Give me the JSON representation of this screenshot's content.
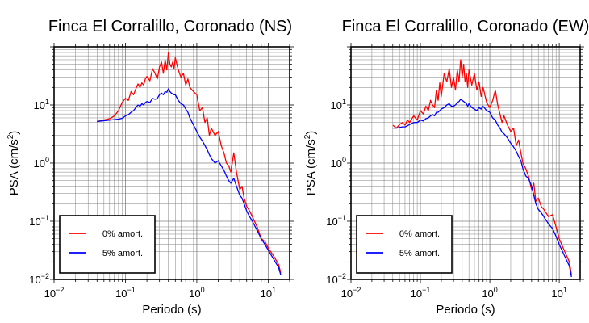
{
  "chart_data": [
    {
      "type": "line",
      "title": "Finca El Corralillo, Coronado (NS)",
      "xlabel": "Periodo (s)",
      "ylabel_main": "PSA (cm/s",
      "ylabel_sup": "2",
      "ylabel_end": ")",
      "xscale": "log",
      "yscale": "log",
      "xlim": [
        0.01,
        20
      ],
      "ylim": [
        0.01,
        100
      ],
      "grid": true,
      "legend_position": "bottom-left",
      "x_ticks": [
        {
          "value": 0.01,
          "base": "10",
          "exp": "−2"
        },
        {
          "value": 0.1,
          "base": "10",
          "exp": "−1"
        },
        {
          "value": 1,
          "base": "10",
          "exp": "0"
        },
        {
          "value": 10,
          "base": "10",
          "exp": "1"
        }
      ],
      "y_ticks": [
        {
          "value": 0.01,
          "base": "10",
          "exp": "−2"
        },
        {
          "value": 0.1,
          "base": "10",
          "exp": "−1"
        },
        {
          "value": 1,
          "base": "10",
          "exp": "0"
        },
        {
          "value": 10,
          "base": "10",
          "exp": "1"
        }
      ],
      "series": [
        {
          "name": "0% amort.",
          "color": "#ff0000",
          "x": [
            0.04,
            0.06,
            0.07,
            0.08,
            0.09,
            0.1,
            0.11,
            0.12,
            0.13,
            0.14,
            0.15,
            0.16,
            0.17,
            0.18,
            0.19,
            0.2,
            0.22,
            0.24,
            0.26,
            0.28,
            0.3,
            0.32,
            0.34,
            0.36,
            0.38,
            0.4,
            0.42,
            0.44,
            0.46,
            0.48,
            0.5,
            0.55,
            0.6,
            0.65,
            0.7,
            0.75,
            0.8,
            0.9,
            1.0,
            1.1,
            1.2,
            1.3,
            1.4,
            1.5,
            1.6,
            1.8,
            2.0,
            2.2,
            2.4,
            2.6,
            2.8,
            3.0,
            3.3,
            3.6,
            4.0,
            4.3,
            4.6,
            5.0,
            5.5,
            6.0,
            7.0,
            8.0,
            9.0,
            10.0,
            12.0,
            14.0,
            15.0
          ],
          "y": [
            5.2,
            5.8,
            6.5,
            8.0,
            11.0,
            13.0,
            12.0,
            17.0,
            15.0,
            19.0,
            23.0,
            20.0,
            24.0,
            22.0,
            28.0,
            31.0,
            26.0,
            42.0,
            35.0,
            28.0,
            45.0,
            55.0,
            35.0,
            60.0,
            40.0,
            80.0,
            50.0,
            45.0,
            55.0,
            42.0,
            65.0,
            40.0,
            30.0,
            35.0,
            22.0,
            28.0,
            20.0,
            17.0,
            15.0,
            8.0,
            9.0,
            5.0,
            6.0,
            3.0,
            4.0,
            3.0,
            3.5,
            2.0,
            1.5,
            1.0,
            0.9,
            0.7,
            1.5,
            0.7,
            0.35,
            0.4,
            0.25,
            0.18,
            0.15,
            0.12,
            0.08,
            0.05,
            0.045,
            0.035,
            0.025,
            0.018,
            0.013
          ]
        },
        {
          "name": "5% amort.",
          "color": "#0000ff",
          "x": [
            0.04,
            0.06,
            0.07,
            0.08,
            0.09,
            0.1,
            0.11,
            0.12,
            0.13,
            0.14,
            0.15,
            0.16,
            0.17,
            0.18,
            0.19,
            0.2,
            0.22,
            0.24,
            0.26,
            0.28,
            0.3,
            0.32,
            0.34,
            0.36,
            0.38,
            0.4,
            0.42,
            0.44,
            0.46,
            0.48,
            0.5,
            0.55,
            0.6,
            0.65,
            0.7,
            0.75,
            0.8,
            0.9,
            1.0,
            1.1,
            1.2,
            1.3,
            1.4,
            1.5,
            1.6,
            1.8,
            2.0,
            2.2,
            2.4,
            2.6,
            2.8,
            3.0,
            3.3,
            3.6,
            4.0,
            4.3,
            4.6,
            5.0,
            5.5,
            6.0,
            7.0,
            8.0,
            9.0,
            10.0,
            12.0,
            14.0,
            15.0
          ],
          "y": [
            5.2,
            5.5,
            5.6,
            5.7,
            5.9,
            6.5,
            6.8,
            7.5,
            8.0,
            9.0,
            10.0,
            9.5,
            10.5,
            10.0,
            11.0,
            11.5,
            11.0,
            13.0,
            12.5,
            13.0,
            15.0,
            16.0,
            15.0,
            17.0,
            16.5,
            19.0,
            17.0,
            16.0,
            15.5,
            15.0,
            15.0,
            12.0,
            10.5,
            10.0,
            8.5,
            7.5,
            6.0,
            4.5,
            3.5,
            2.8,
            2.4,
            2.0,
            1.7,
            1.4,
            1.2,
            1.0,
            1.1,
            0.9,
            0.75,
            0.6,
            0.5,
            0.45,
            0.55,
            0.4,
            0.28,
            0.25,
            0.2,
            0.15,
            0.12,
            0.1,
            0.07,
            0.05,
            0.04,
            0.032,
            0.022,
            0.016,
            0.012
          ]
        }
      ]
    },
    {
      "type": "line",
      "title": "Finca El Corralillo, Coronado (EW)",
      "xlabel": "Periodo (s)",
      "ylabel_main": "PSA (cm/s",
      "ylabel_sup": "2",
      "ylabel_end": ")",
      "xscale": "log",
      "yscale": "log",
      "xlim": [
        0.01,
        20
      ],
      "ylim": [
        0.01,
        100
      ],
      "grid": true,
      "legend_position": "bottom-left",
      "x_ticks": [
        {
          "value": 0.01,
          "base": "10",
          "exp": "−2"
        },
        {
          "value": 0.1,
          "base": "10",
          "exp": "−1"
        },
        {
          "value": 1,
          "base": "10",
          "exp": "0"
        },
        {
          "value": 10,
          "base": "10",
          "exp": "1"
        }
      ],
      "y_ticks": [
        {
          "value": 0.01,
          "base": "10",
          "exp": "−2"
        },
        {
          "value": 0.1,
          "base": "10",
          "exp": "−1"
        },
        {
          "value": 1,
          "base": "10",
          "exp": "0"
        },
        {
          "value": 10,
          "base": "10",
          "exp": "1"
        }
      ],
      "series": [
        {
          "name": "0% amort.",
          "color": "#ff0000",
          "x": [
            0.04,
            0.045,
            0.05,
            0.055,
            0.06,
            0.065,
            0.07,
            0.08,
            0.09,
            0.1,
            0.11,
            0.12,
            0.13,
            0.14,
            0.15,
            0.16,
            0.17,
            0.18,
            0.19,
            0.2,
            0.22,
            0.24,
            0.26,
            0.28,
            0.3,
            0.32,
            0.34,
            0.36,
            0.38,
            0.4,
            0.42,
            0.44,
            0.46,
            0.48,
            0.5,
            0.55,
            0.6,
            0.65,
            0.7,
            0.75,
            0.8,
            0.9,
            1.0,
            1.1,
            1.2,
            1.3,
            1.4,
            1.5,
            1.6,
            1.8,
            2.0,
            2.2,
            2.4,
            2.6,
            2.8,
            3.0,
            3.3,
            3.6,
            4.0,
            4.3,
            4.6,
            5.0,
            5.5,
            6.0,
            7.0,
            8.0,
            9.0,
            10.0,
            12.0,
            14.0,
            15.0
          ],
          "y": [
            4.5,
            4.0,
            4.6,
            5.0,
            4.5,
            5.5,
            5.0,
            6.5,
            5.5,
            8.0,
            7.0,
            9.5,
            8.0,
            12.0,
            10.0,
            9.0,
            18.0,
            12.0,
            24.0,
            14.0,
            35.0,
            25.0,
            42.0,
            20.0,
            30.0,
            18.0,
            40.0,
            25.0,
            60.0,
            30.0,
            50.0,
            25.0,
            35.0,
            20.0,
            40.0,
            22.0,
            35.0,
            18.0,
            25.0,
            14.0,
            20.0,
            11.0,
            9.0,
            12.0,
            18.0,
            10.0,
            7.0,
            5.0,
            6.5,
            4.5,
            3.5,
            4.0,
            2.0,
            2.5,
            1.5,
            1.0,
            0.8,
            0.6,
            0.35,
            0.45,
            0.22,
            0.25,
            0.18,
            0.16,
            0.12,
            0.13,
            0.08,
            0.05,
            0.03,
            0.02,
            0.012
          ]
        },
        {
          "name": "5% amort.",
          "color": "#0000ff",
          "x": [
            0.04,
            0.045,
            0.05,
            0.055,
            0.06,
            0.065,
            0.07,
            0.08,
            0.09,
            0.1,
            0.11,
            0.12,
            0.13,
            0.14,
            0.15,
            0.16,
            0.17,
            0.18,
            0.19,
            0.2,
            0.22,
            0.24,
            0.26,
            0.28,
            0.3,
            0.32,
            0.34,
            0.36,
            0.38,
            0.4,
            0.42,
            0.44,
            0.46,
            0.48,
            0.5,
            0.55,
            0.6,
            0.65,
            0.7,
            0.75,
            0.8,
            0.9,
            1.0,
            1.1,
            1.2,
            1.3,
            1.4,
            1.5,
            1.6,
            1.8,
            2.0,
            2.2,
            2.4,
            2.6,
            2.8,
            3.0,
            3.3,
            3.6,
            4.0,
            4.3,
            4.6,
            5.0,
            5.5,
            6.0,
            7.0,
            8.0,
            9.0,
            10.0,
            12.0,
            14.0,
            15.0
          ],
          "y": [
            4.0,
            4.0,
            4.1,
            4.2,
            4.2,
            4.4,
            4.6,
            5.0,
            5.0,
            5.5,
            5.3,
            5.8,
            6.0,
            6.5,
            6.8,
            6.5,
            7.5,
            7.5,
            8.0,
            8.5,
            9.0,
            10.0,
            10.5,
            9.5,
            9.5,
            10.0,
            11.0,
            11.5,
            12.5,
            12.0,
            11.5,
            11.0,
            10.5,
            9.5,
            10.5,
            9.0,
            8.5,
            8.0,
            9.0,
            8.5,
            9.5,
            8.0,
            7.5,
            6.0,
            5.5,
            4.5,
            4.0,
            3.4,
            3.2,
            2.7,
            2.2,
            1.9,
            1.6,
            1.3,
            1.1,
            0.8,
            0.6,
            0.55,
            0.4,
            0.28,
            0.2,
            0.16,
            0.14,
            0.12,
            0.09,
            0.075,
            0.055,
            0.04,
            0.025,
            0.017,
            0.011
          ]
        }
      ]
    }
  ]
}
